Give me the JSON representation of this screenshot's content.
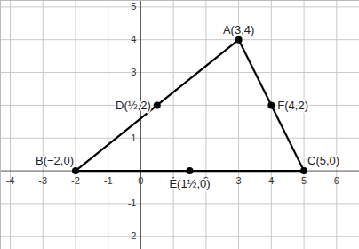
{
  "chart_data": {
    "type": "scatter",
    "points": [
      {
        "name": "A",
        "label": "A(3,4)",
        "x": 3,
        "y": 4
      },
      {
        "name": "B",
        "label": "B(−2,0)",
        "x": -2,
        "y": 0
      },
      {
        "name": "C",
        "label": "C(5,0)",
        "x": 5,
        "y": 0
      },
      {
        "name": "D",
        "label": "D(½,2)",
        "x": 0.5,
        "y": 2
      },
      {
        "name": "E",
        "label": "E(1½,0)",
        "x": 1.5,
        "y": 0
      },
      {
        "name": "F",
        "label": "F(4,2)",
        "x": 4,
        "y": 2
      }
    ],
    "triangle": [
      "A",
      "B",
      "C"
    ],
    "color": "#000000",
    "xlim": [
      -4.3,
      6.7
    ],
    "ylim": [
      -2.4,
      5.2
    ],
    "xticks": [
      -4,
      -3,
      -2,
      -1,
      0,
      1,
      2,
      3,
      4,
      5,
      6
    ],
    "yticks": [
      -2,
      -1,
      1,
      2,
      3,
      4,
      5
    ],
    "grid": true
  }
}
